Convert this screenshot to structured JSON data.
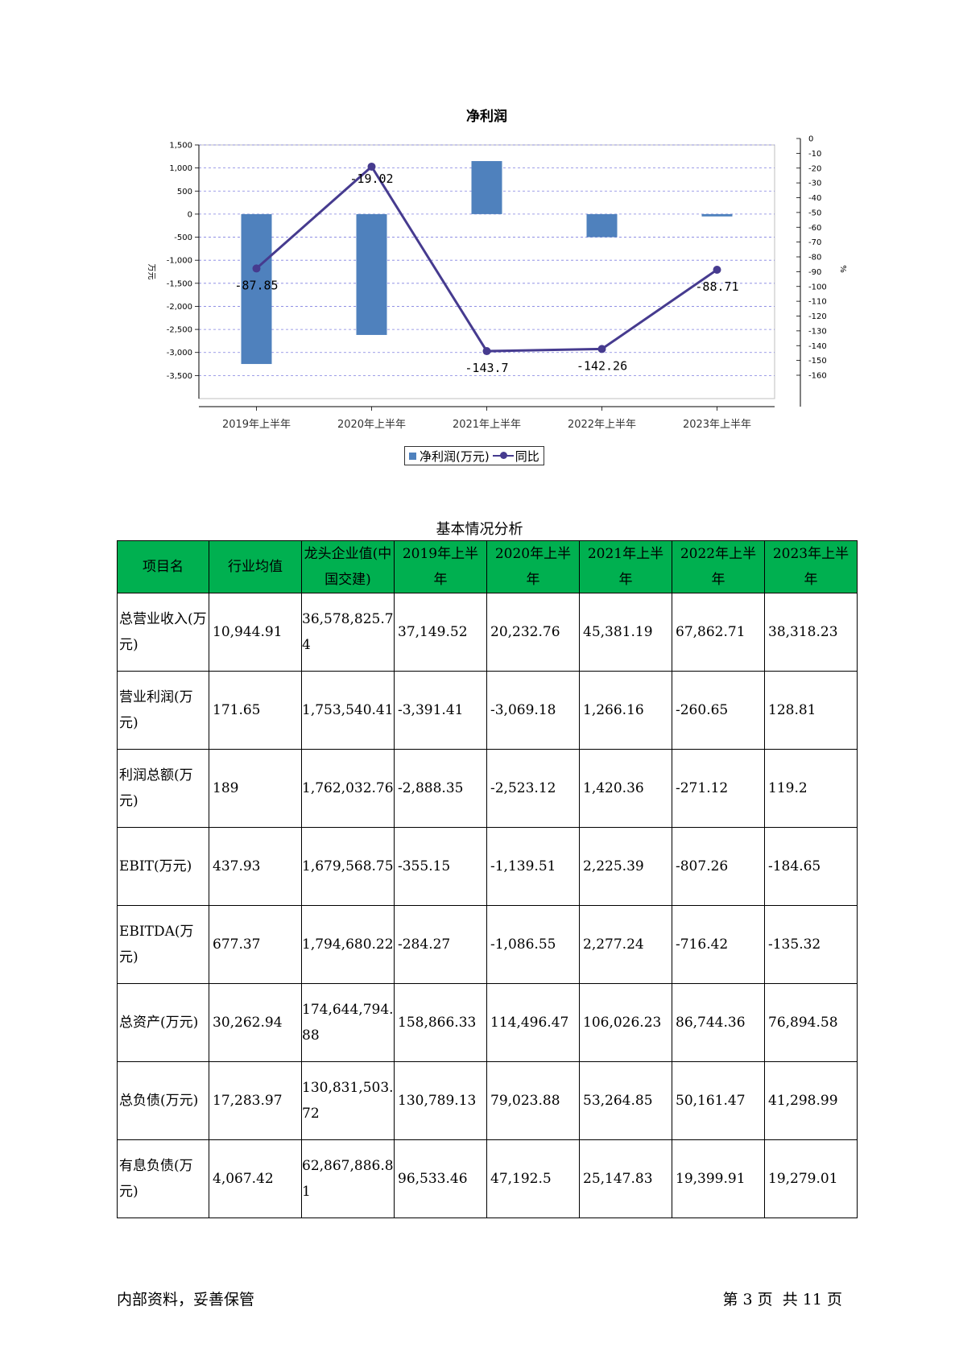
{
  "chart_data": {
    "type": "bar",
    "title": "净利润",
    "categories": [
      "2019年上半年",
      "2020年上半年",
      "2021年上半年",
      "2022年上半年",
      "2023年上半年"
    ],
    "ylabel": "万元",
    "y2label": "%",
    "ylim": [
      -4000,
      1500
    ],
    "y2lim": [
      -160,
      0
    ],
    "yticks": [
      "1,500",
      "1,000",
      "500",
      "0",
      "-500",
      "-1,000",
      "-1,500",
      "-2,000",
      "-2,500",
      "-3,000",
      "-3,500"
    ],
    "y2ticks": [
      "0",
      "-10",
      "-20",
      "-30",
      "-40",
      "-50",
      "-60",
      "-70",
      "-80",
      "-90",
      "-100",
      "-110",
      "-120",
      "-130",
      "-140",
      "-150",
      "-160"
    ],
    "grid": true,
    "legend_position": "bottom",
    "series": [
      {
        "name": "净利润(万元)",
        "type": "bar",
        "color": "#4f81bd",
        "values": [
          -3250,
          -2620,
          1150,
          -500,
          -50
        ]
      },
      {
        "name": "同比",
        "type": "line",
        "color": "#463b8f",
        "values": [
          -87.85,
          -19.02,
          -143.7,
          -142.26,
          -88.71
        ],
        "labels": [
          "-87.85",
          "-19.02",
          "-143.7",
          "-142.26",
          "-88.71"
        ]
      }
    ]
  },
  "table": {
    "title": "基本情况分析",
    "headers": [
      "项目名",
      "行业均值",
      "龙头企业值(中国交建)",
      "2019年上半年",
      "2020年上半年",
      "2021年上半年",
      "2022年上半年",
      "2023年上半年"
    ],
    "rows": [
      [
        "总营业收入(万元)",
        "10,944.91",
        "36,578,825.74",
        "37,149.52",
        "20,232.76",
        "45,381.19",
        "67,862.71",
        "38,318.23"
      ],
      [
        "营业利润(万元)",
        "171.65",
        "1,753,540.41",
        "-3,391.41",
        "-3,069.18",
        "1,266.16",
        "-260.65",
        "128.81"
      ],
      [
        "利润总额(万元)",
        "189",
        "1,762,032.76",
        "-2,888.35",
        "-2,523.12",
        "1,420.36",
        "-271.12",
        "119.2"
      ],
      [
        "EBIT(万元)",
        "437.93",
        "1,679,568.75",
        "-355.15",
        "-1,139.51",
        "2,225.39",
        "-807.26",
        "-184.65"
      ],
      [
        "EBITDA(万元)",
        "677.37",
        "1,794,680.22",
        "-284.27",
        "-1,086.55",
        "2,277.24",
        "-716.42",
        "-135.32"
      ],
      [
        "总资产(万元)",
        "30,262.94",
        "174,644,794.88",
        "158,866.33",
        "114,496.47",
        "106,026.23",
        "86,744.36",
        "76,894.58"
      ],
      [
        "总负债(万元)",
        "17,283.97",
        "130,831,503.72",
        "130,789.13",
        "79,023.88",
        "53,264.85",
        "50,161.47",
        "41,298.99"
      ],
      [
        "有息负债(万元)",
        "4,067.42",
        "62,867,886.81",
        "96,533.46",
        "47,192.5",
        "25,147.83",
        "19,399.91",
        "19,279.01"
      ]
    ]
  },
  "footer": {
    "left": "内部资料，妥善保管",
    "right": "第 3 页  共 11 页"
  }
}
